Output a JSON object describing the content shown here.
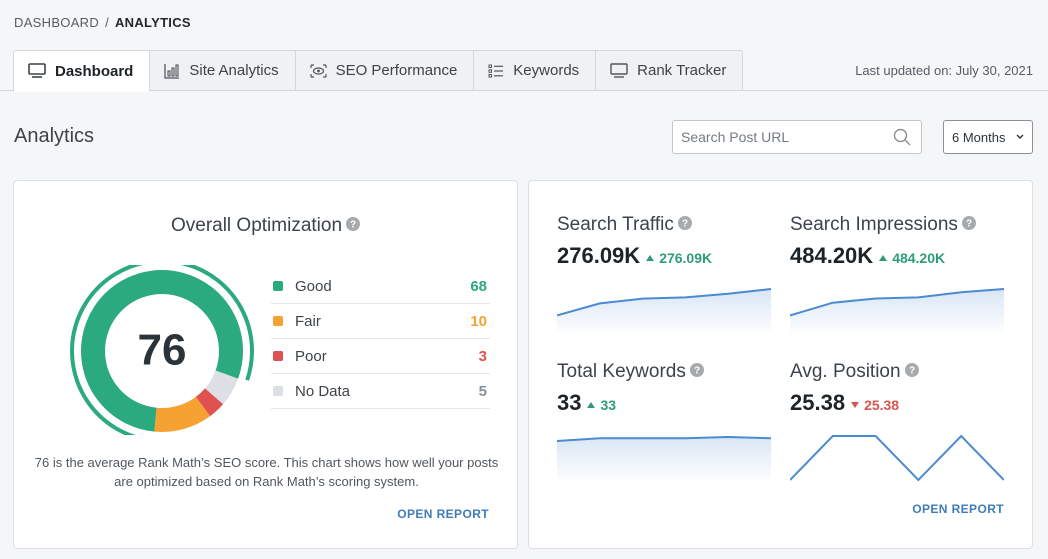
{
  "breadcrumb": {
    "parent": "DASHBOARD",
    "separator": "/",
    "current": "ANALYTICS"
  },
  "tabs": [
    {
      "label": "Dashboard",
      "icon": "monitor-icon",
      "active": true
    },
    {
      "label": "Site Analytics",
      "icon": "bar-chart-icon",
      "active": false
    },
    {
      "label": "SEO Performance",
      "icon": "eye-icon",
      "active": false
    },
    {
      "label": "Keywords",
      "icon": "list-icon",
      "active": false
    },
    {
      "label": "Rank Tracker",
      "icon": "monitor-icon",
      "active": false
    }
  ],
  "last_updated": "Last updated on: July 30, 2021",
  "page_title": "Analytics",
  "search": {
    "placeholder": "Search Post URL",
    "value": ""
  },
  "range": {
    "selected": "6 Months"
  },
  "optimization": {
    "title": "Overall Optimization",
    "score": "76",
    "legend": [
      {
        "label": "Good",
        "count": 68,
        "color": "#2ba97f"
      },
      {
        "label": "Fair",
        "count": 10,
        "color": "#f5a233"
      },
      {
        "label": "Poor",
        "count": 3,
        "color": "#e05252"
      },
      {
        "label": "No Data",
        "count": 5,
        "color": "#dcdfe3"
      }
    ],
    "legend_count_colors": [
      "#2ba97f",
      "#f5a233",
      "#e05252",
      "#8a9099"
    ],
    "description": "76 is the average Rank Math’s SEO score. This chart shows how well your posts are optimized based on Rank Math’s scoring system.",
    "open_report": "OPEN REPORT"
  },
  "metrics": {
    "search_traffic": {
      "title": "Search Traffic",
      "value": "276.09K",
      "delta": "276.09K",
      "trend": "up",
      "spark": [
        2,
        12,
        16,
        17,
        20,
        24
      ]
    },
    "search_impressions": {
      "title": "Search Impressions",
      "value": "484.20K",
      "delta": "484.20K",
      "trend": "up",
      "spark": [
        2,
        14,
        18,
        19,
        24,
        27
      ]
    },
    "total_keywords": {
      "title": "Total Keywords",
      "value": "33",
      "delta": "33",
      "trend": "up",
      "spark": [
        30,
        32,
        32,
        32,
        33,
        32
      ]
    },
    "avg_position": {
      "title": "Avg. Position",
      "value": "25.38",
      "delta": "25.38",
      "trend": "down",
      "spark": [
        20,
        30,
        30,
        20,
        30,
        20
      ]
    },
    "open_report": "OPEN REPORT"
  }
}
